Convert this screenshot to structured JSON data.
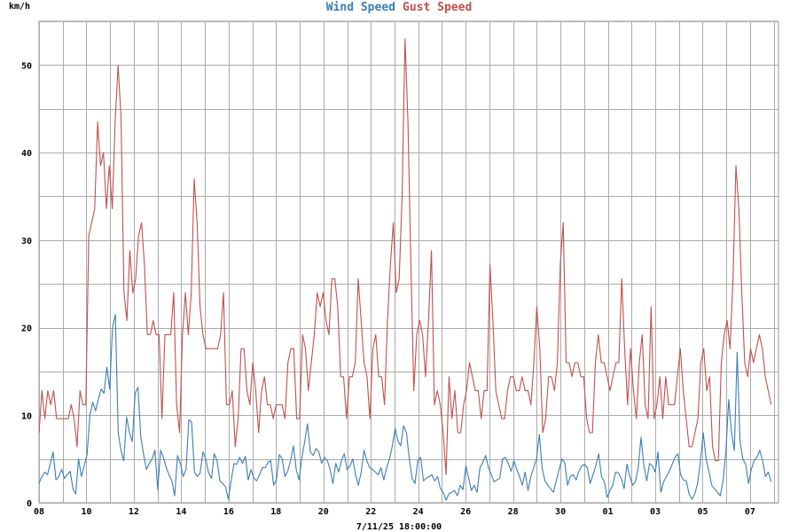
{
  "chart_data": {
    "type": "line",
    "title_parts": [
      "Wind Speed",
      "Gust Speed"
    ],
    "ylabel": "km/h",
    "xlabel": "7/11/25 18:00:00",
    "ylim": [
      0,
      55
    ],
    "y_ticks": [
      "0",
      "10",
      "20",
      "30",
      "40",
      "50"
    ],
    "x_ticks": [
      "08",
      "10",
      "12",
      "14",
      "16",
      "18",
      "20",
      "22",
      "24",
      "26",
      "28",
      "30",
      "01",
      "03",
      "05",
      "07"
    ],
    "grid": true,
    "series": [
      {
        "name": "Wind Speed",
        "color": "#3b7db4",
        "values": [
          2.2,
          3.0,
          3.5,
          3.2,
          4.5,
          5.8,
          2.6,
          3.0,
          3.8,
          2.8,
          3.2,
          3.6,
          1.6,
          1.0,
          5.0,
          3.0,
          4.2,
          5.5,
          10.0,
          11.5,
          10.5,
          11.8,
          13.0,
          12.5,
          15.5,
          13.0,
          20.0,
          21.5,
          8.0,
          6.0,
          4.8,
          9.8,
          8.0,
          7.0,
          12.5,
          13.2,
          7.5,
          5.5,
          3.8,
          4.5,
          5.0,
          6.0,
          1.5,
          6.0,
          5.2,
          4.0,
          3.2,
          2.5,
          0.8,
          5.4,
          4.5,
          3.0,
          3.8,
          9.5,
          9.2,
          3.5,
          3.0,
          3.4,
          5.8,
          5.0,
          3.4,
          2.8,
          5.6,
          4.8,
          2.5,
          2.2,
          1.8,
          0.4,
          2.6,
          4.5,
          4.4,
          5.2,
          4.5,
          5.3,
          2.6,
          3.8,
          2.8,
          2.5,
          3.2,
          4.0,
          4.0,
          4.6,
          4.8,
          2.0,
          2.6,
          5.5,
          5.0,
          3.0,
          3.6,
          4.8,
          6.5,
          3.8,
          2.6,
          5.2,
          7.0,
          9.0,
          5.8,
          5.4,
          6.2,
          5.8,
          4.5,
          5.2,
          4.8,
          3.8,
          2.2,
          4.5,
          3.5,
          4.8,
          5.6,
          3.8,
          4.2,
          5.0,
          3.2,
          2.0,
          3.5,
          6.0,
          4.8,
          4.0,
          3.8,
          3.5,
          3.2,
          4.0,
          2.6,
          4.0,
          5.0,
          6.5,
          8.5,
          7.0,
          6.5,
          8.8,
          8.0,
          5.0,
          2.8,
          2.2,
          4.8,
          5.2,
          2.5,
          2.8,
          3.0,
          3.2,
          2.5,
          3.0,
          1.6,
          1.2,
          0.3,
          1.0,
          1.2,
          1.4,
          0.8,
          2.0,
          1.5,
          4.2,
          2.8,
          1.4,
          2.0,
          1.2,
          4.0,
          4.6,
          5.4,
          4.0,
          3.2,
          2.4,
          2.6,
          2.8,
          5.0,
          5.2,
          4.5,
          3.6,
          4.8,
          3.8,
          3.0,
          2.0,
          3.5,
          1.4,
          3.0,
          4.0,
          5.0,
          7.8,
          4.0,
          2.5,
          2.0,
          1.6,
          1.2,
          2.5,
          3.8,
          5.0,
          4.6,
          2.0,
          3.0,
          3.2,
          2.6,
          3.6,
          4.2,
          4.4,
          4.0,
          2.2,
          3.2,
          4.2,
          5.6,
          3.0,
          2.4,
          0.6,
          1.4,
          2.0,
          3.5,
          3.4,
          2.8,
          1.6,
          4.4,
          3.0,
          2.0,
          2.4,
          4.0,
          7.5,
          4.2,
          2.5,
          4.5,
          4.2,
          3.5,
          5.8,
          1.2,
          2.4,
          3.0,
          3.6,
          4.4,
          5.2,
          5.6,
          3.2,
          2.6,
          2.5,
          1.0,
          0.4,
          1.0,
          2.2,
          4.8,
          8.0,
          5.0,
          3.6,
          2.0,
          1.6,
          1.2,
          0.8,
          2.5,
          5.8,
          11.8,
          8.0,
          6.0,
          17.2,
          7.0,
          5.0,
          4.4,
          2.2,
          3.8,
          4.8,
          5.2,
          6.0,
          4.8,
          3.0,
          3.5,
          2.4
        ]
      },
      {
        "name": "Gust Speed",
        "color": "#c0504d",
        "values": [
          8.0,
          12.8,
          9.6,
          12.8,
          11.2,
          12.8,
          9.6,
          9.6,
          9.6,
          9.6,
          9.6,
          11.2,
          9.6,
          6.4,
          12.8,
          11.2,
          11.2,
          30.5,
          32.0,
          33.6,
          43.5,
          38.5,
          40.0,
          33.6,
          38.5,
          33.6,
          43.5,
          50.0,
          44.0,
          24.0,
          20.8,
          28.8,
          24.0,
          25.6,
          30.5,
          32.0,
          27.2,
          19.2,
          19.2,
          20.8,
          19.2,
          19.2,
          9.6,
          19.2,
          19.2,
          19.2,
          24.0,
          11.2,
          8.0,
          19.2,
          24.0,
          19.2,
          24.0,
          37.0,
          32.0,
          22.4,
          19.2,
          17.6,
          17.6,
          17.6,
          17.6,
          17.6,
          19.2,
          24.0,
          11.2,
          11.2,
          12.8,
          6.4,
          9.6,
          17.6,
          17.6,
          12.8,
          11.2,
          16.0,
          12.8,
          8.0,
          12.8,
          14.4,
          11.2,
          11.2,
          9.6,
          11.2,
          11.2,
          11.2,
          9.6,
          16.0,
          17.6,
          17.6,
          9.6,
          9.6,
          19.2,
          17.6,
          12.8,
          16.0,
          19.2,
          24.0,
          22.4,
          24.0,
          20.8,
          19.2,
          25.6,
          25.6,
          22.4,
          14.4,
          14.4,
          9.6,
          14.4,
          14.4,
          16.0,
          25.6,
          20.8,
          16.0,
          14.4,
          9.6,
          17.6,
          19.2,
          14.4,
          14.4,
          11.2,
          20.8,
          27.2,
          32.0,
          24.0,
          25.6,
          35.0,
          53.0,
          43.5,
          27.2,
          12.8,
          19.2,
          20.8,
          19.2,
          14.4,
          20.8,
          28.8,
          11.2,
          12.8,
          11.2,
          8.0,
          3.2,
          14.4,
          9.6,
          12.8,
          8.0,
          8.0,
          11.2,
          12.8,
          16.0,
          14.4,
          12.8,
          12.8,
          9.6,
          12.8,
          12.8,
          27.2,
          20.8,
          12.8,
          11.2,
          9.6,
          9.6,
          12.8,
          14.4,
          14.4,
          12.8,
          12.8,
          14.4,
          12.8,
          12.8,
          11.2,
          16.0,
          22.4,
          17.6,
          8.0,
          9.6,
          14.4,
          14.4,
          12.8,
          16.0,
          27.2,
          32.0,
          16.0,
          16.0,
          14.4,
          16.0,
          16.0,
          14.4,
          14.4,
          9.6,
          8.0,
          8.0,
          16.0,
          19.2,
          16.0,
          16.0,
          14.4,
          12.8,
          14.4,
          16.0,
          16.0,
          25.6,
          17.6,
          11.2,
          17.6,
          12.8,
          9.6,
          16.0,
          19.2,
          11.2,
          9.6,
          22.4,
          9.6,
          11.2,
          14.4,
          9.6,
          14.4,
          11.2,
          11.2,
          11.2,
          14.4,
          17.6,
          12.8,
          9.6,
          6.4,
          6.4,
          8.0,
          9.6,
          16.0,
          17.6,
          12.8,
          14.4,
          6.4,
          4.8,
          4.8,
          16.0,
          19.2,
          20.8,
          17.6,
          25.6,
          38.5,
          33.6,
          24.0,
          16.0,
          14.4,
          17.6,
          16.0,
          17.6,
          19.2,
          17.6,
          14.4,
          12.8,
          11.2
        ]
      }
    ]
  }
}
